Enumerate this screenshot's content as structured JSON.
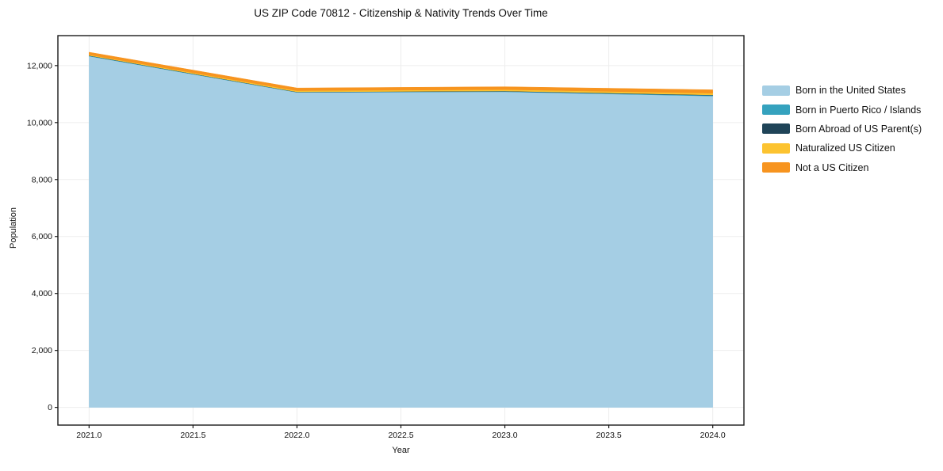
{
  "chart_data": {
    "type": "area",
    "stacked": true,
    "title": "US ZIP Code 70812 - Citizenship & Nativity Trends Over Time",
    "xlabel": "Year",
    "ylabel": "Population",
    "x": [
      2021,
      2022,
      2023,
      2024
    ],
    "series": [
      {
        "name": "Born in the United States",
        "color": "#a5cee4",
        "values": [
          12330,
          11060,
          11080,
          10930
        ]
      },
      {
        "name": "Born in Puerto Rico / Islands",
        "color": "#35a2be",
        "values": [
          15,
          10,
          15,
          25
        ]
      },
      {
        "name": "Born Abroad of US Parent(s)",
        "color": "#1f4458",
        "values": [
          10,
          8,
          12,
          15
        ]
      },
      {
        "name": "Naturalized US Citizen",
        "color": "#fcc330",
        "values": [
          25,
          40,
          50,
          60
        ]
      },
      {
        "name": "Not a US Citizen",
        "color": "#f7941f",
        "values": [
          90,
          95,
          100,
          120
        ]
      }
    ],
    "totals": [
      12470,
      11213,
      11257,
      11150
    ],
    "xlim": [
      2020.85,
      2024.15
    ],
    "ylim": [
      -622,
      13052
    ],
    "xticks": [
      2021.0,
      2021.5,
      2022.0,
      2022.5,
      2023.0,
      2023.5,
      2024.0
    ],
    "xtick_labels": [
      "2021.0",
      "2021.5",
      "2022.0",
      "2022.5",
      "2023.0",
      "2023.5",
      "2024.0"
    ],
    "yticks": [
      0,
      2000,
      4000,
      6000,
      8000,
      10000,
      12000
    ],
    "ytick_labels": [
      "0",
      "2,000",
      "4,000",
      "6,000",
      "8,000",
      "10,000",
      "12,000"
    ],
    "grid": true,
    "grid_color": "#ededed",
    "spine_color": "#1a1a1a",
    "legend_position": "right-top"
  }
}
